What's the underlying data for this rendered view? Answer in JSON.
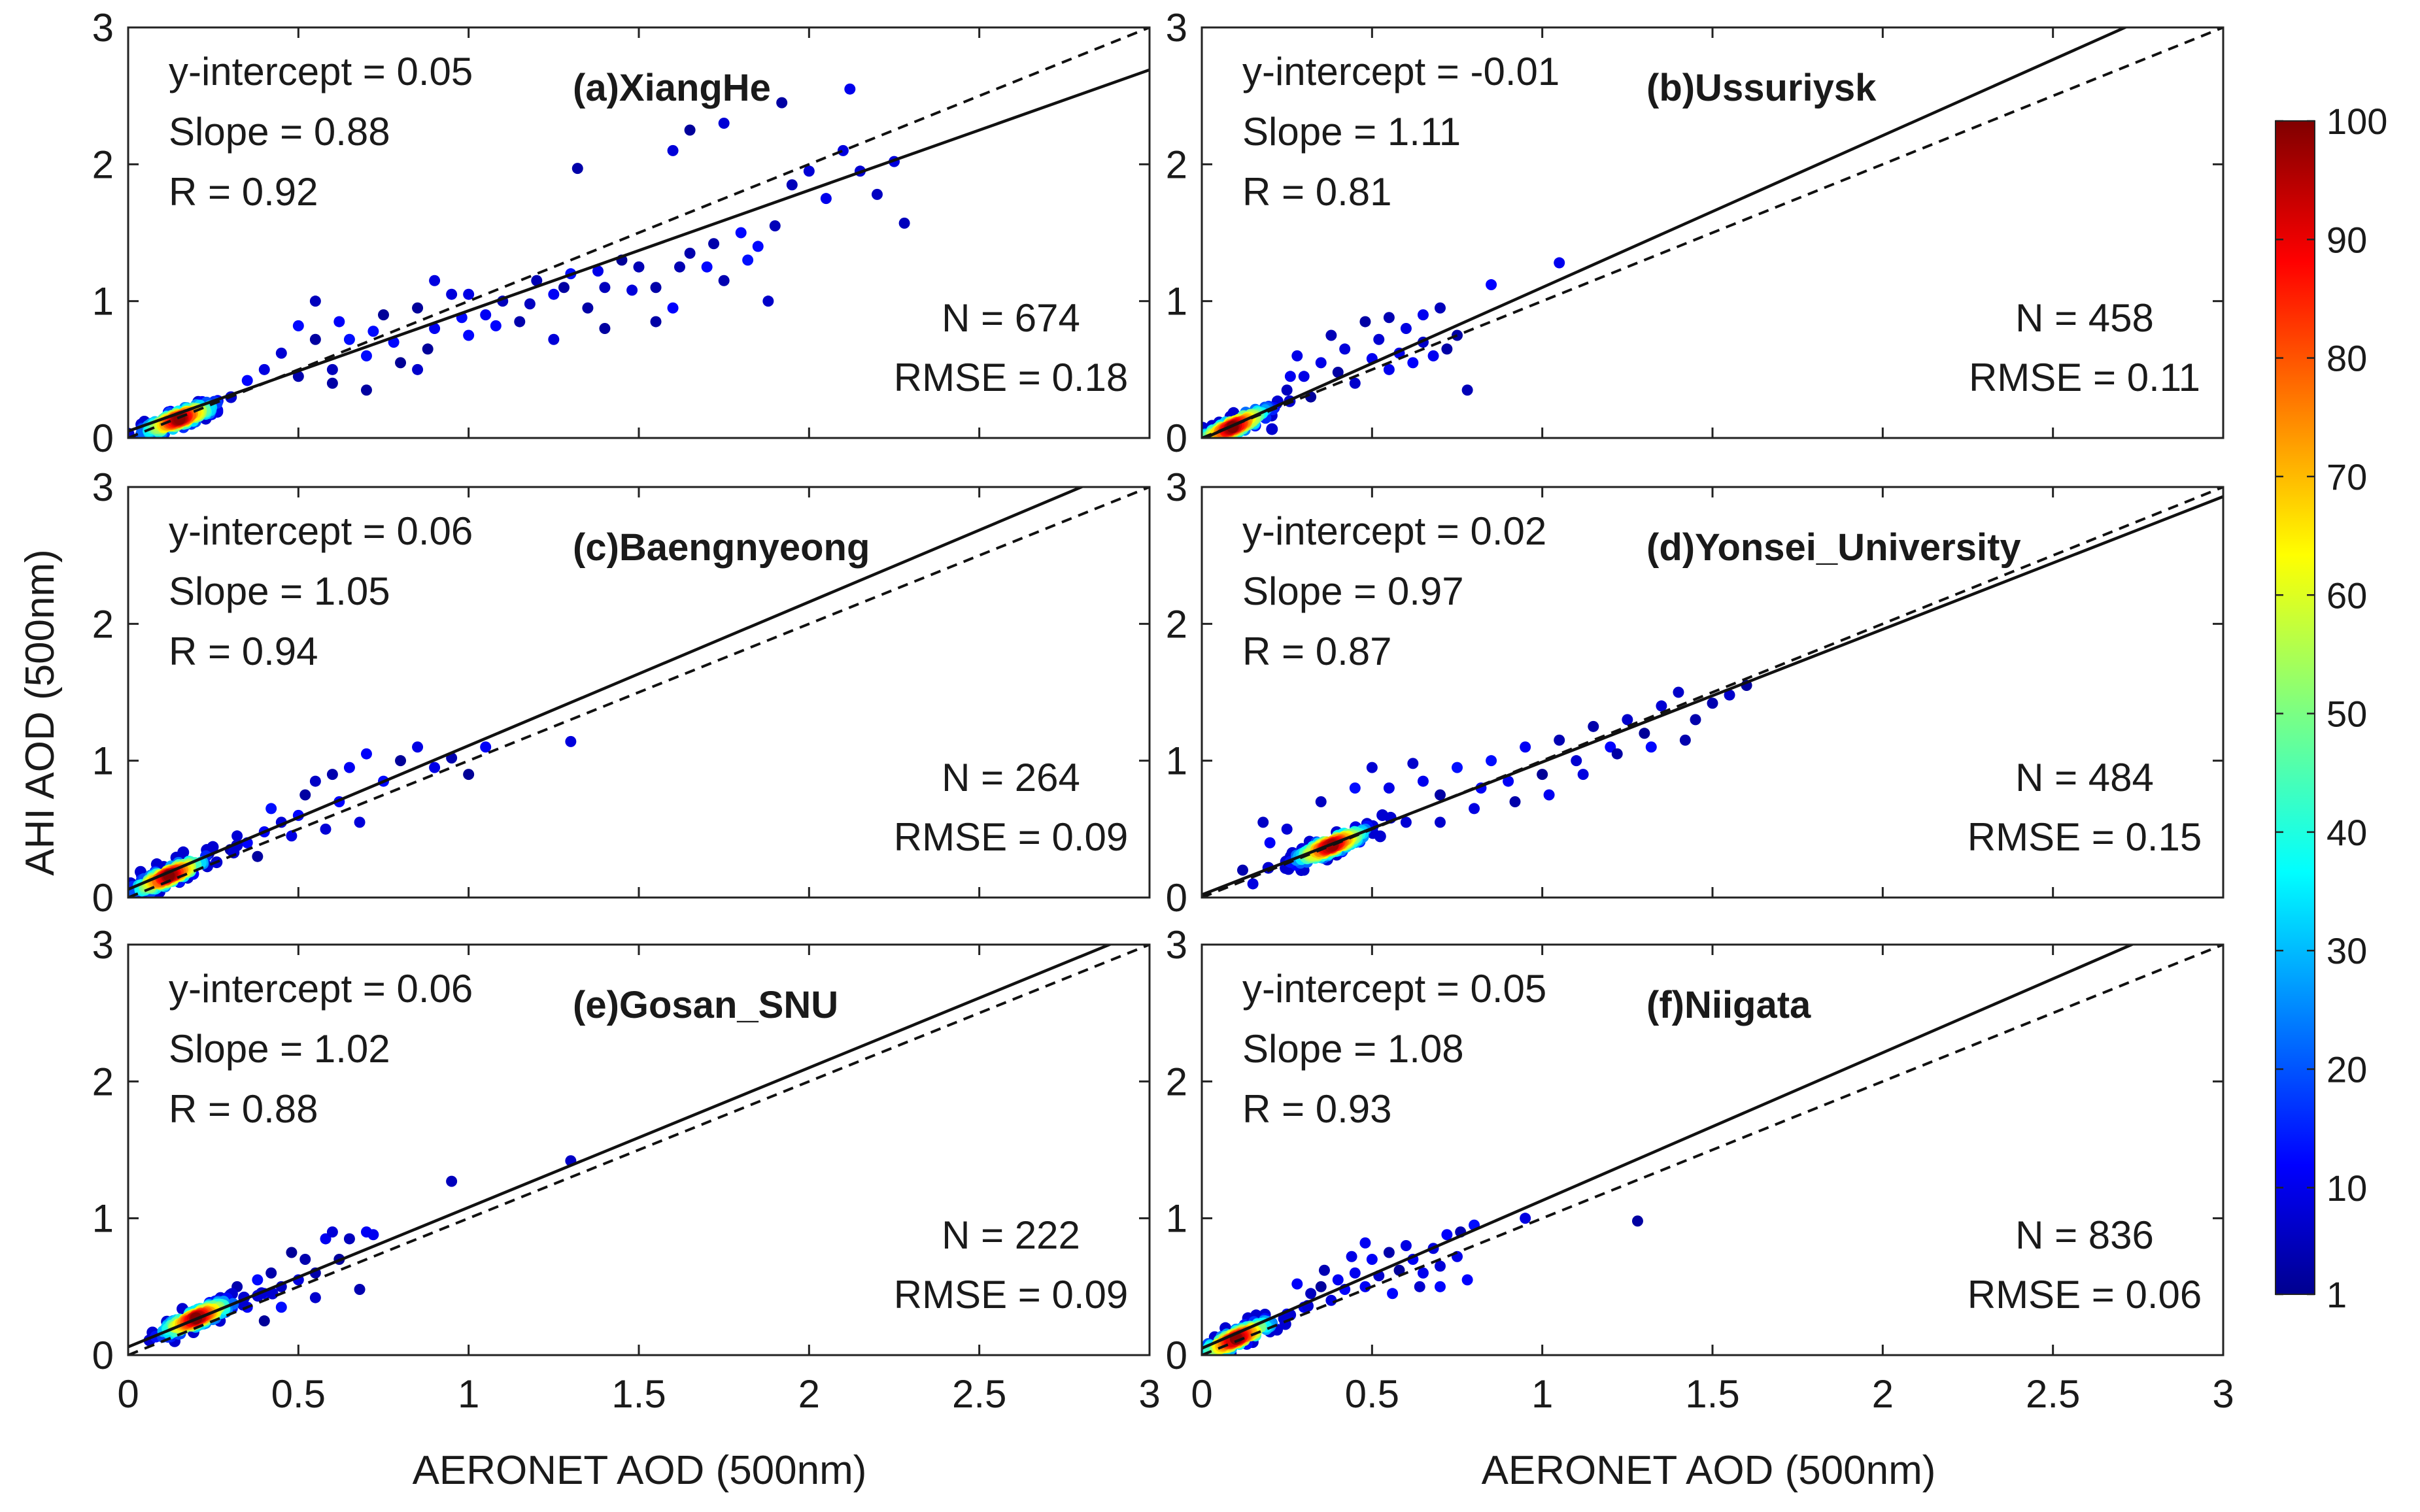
{
  "figure": {
    "ylabel": "AHI AOD (500nm)",
    "xlabel": "AERONET AOD (500nm)"
  },
  "chart_data": [
    {
      "type": "scatter",
      "title": "(a)XiangHe",
      "xlim": [
        0,
        3
      ],
      "ylim": [
        0,
        3
      ],
      "xticks": [
        "0",
        "0.5",
        "1",
        "1.5",
        "2",
        "2.5",
        "3"
      ],
      "yticks": [
        "0",
        "1",
        "2",
        "3"
      ],
      "stats": {
        "intercept": "y-intercept = 0.05",
        "slope": "Slope = 0.88",
        "r": "R = 0.92",
        "n": "N = 674",
        "rmse": "RMSE = 0.18"
      },
      "fit": {
        "intercept": 0.05,
        "slope": 0.88
      },
      "cluster": {
        "cx": 0.15,
        "cy": 0.14
      },
      "points": [
        [
          0.55,
          0.72
        ],
        [
          0.62,
          0.85
        ],
        [
          0.7,
          0.6
        ],
        [
          0.75,
          0.9
        ],
        [
          0.8,
          0.55
        ],
        [
          0.85,
          0.95
        ],
        [
          0.9,
          0.8
        ],
        [
          0.95,
          1.05
        ],
        [
          1.0,
          0.75
        ],
        [
          1.05,
          0.9
        ],
        [
          1.1,
          1.0
        ],
        [
          1.15,
          0.85
        ],
        [
          1.2,
          1.15
        ],
        [
          1.25,
          1.05
        ],
        [
          1.3,
          1.2
        ],
        [
          1.35,
          0.95
        ],
        [
          1.4,
          1.1
        ],
        [
          1.45,
          1.3
        ],
        [
          1.5,
          1.25
        ],
        [
          1.55,
          1.1
        ],
        [
          1.6,
          0.95
        ],
        [
          1.65,
          1.35
        ],
        [
          1.7,
          1.25
        ],
        [
          1.75,
          1.15
        ],
        [
          1.8,
          1.5
        ],
        [
          1.85,
          1.4
        ],
        [
          1.9,
          1.55
        ],
        [
          0.4,
          0.5
        ],
        [
          0.45,
          0.62
        ],
        [
          0.5,
          0.45
        ],
        [
          0.35,
          0.42
        ],
        [
          0.6,
          0.5
        ],
        [
          0.65,
          0.72
        ],
        [
          0.72,
          0.78
        ],
        [
          0.78,
          0.7
        ],
        [
          0.88,
          0.65
        ],
        [
          0.98,
          0.88
        ],
        [
          1.08,
          0.82
        ],
        [
          1.18,
          0.98
        ],
        [
          1.28,
          1.1
        ],
        [
          1.38,
          1.22
        ],
        [
          1.48,
          1.08
        ],
        [
          1.62,
          1.25
        ],
        [
          1.72,
          1.42
        ],
        [
          1.82,
          1.3
        ],
        [
          1.95,
          1.85
        ],
        [
          2.0,
          1.95
        ],
        [
          2.05,
          1.75
        ],
        [
          2.1,
          2.1
        ],
        [
          2.15,
          1.95
        ],
        [
          2.2,
          1.78
        ],
        [
          2.25,
          2.02
        ],
        [
          2.28,
          1.57
        ],
        [
          2.12,
          2.55
        ],
        [
          1.92,
          2.45
        ],
        [
          1.75,
          2.3
        ],
        [
          1.65,
          2.25
        ],
        [
          1.6,
          2.1
        ],
        [
          1.32,
          1.97
        ],
        [
          1.0,
          1.05
        ],
        [
          0.5,
          0.82
        ],
        [
          0.55,
          1.0
        ],
        [
          0.9,
          1.15
        ],
        [
          0.85,
          0.5
        ],
        [
          0.7,
          0.35
        ],
        [
          0.6,
          0.4
        ],
        [
          1.25,
          0.72
        ],
        [
          1.4,
          0.8
        ],
        [
          1.55,
          0.85
        ],
        [
          1.88,
          1.0
        ]
      ]
    },
    {
      "type": "scatter",
      "title": "(b)Ussuriysk",
      "xlim": [
        0,
        3
      ],
      "ylim": [
        0,
        3
      ],
      "xticks": [
        "0",
        "0.5",
        "1",
        "1.5",
        "2",
        "2.5",
        "3"
      ],
      "yticks": [
        "0",
        "1",
        "2",
        "3"
      ],
      "stats": {
        "intercept": "y-intercept = -0.01",
        "slope": "Slope = 1.11",
        "r": "R = 0.81",
        "n": "N = 458",
        "rmse": "RMSE = 0.11"
      },
      "fit": {
        "intercept": -0.01,
        "slope": 1.11
      },
      "cluster": {
        "cx": 0.09,
        "cy": 0.08
      },
      "points": [
        [
          0.3,
          0.45
        ],
        [
          0.35,
          0.55
        ],
        [
          0.4,
          0.48
        ],
        [
          0.42,
          0.65
        ],
        [
          0.45,
          0.4
        ],
        [
          0.5,
          0.58
        ],
        [
          0.52,
          0.72
        ],
        [
          0.55,
          0.5
        ],
        [
          0.58,
          0.62
        ],
        [
          0.6,
          0.8
        ],
        [
          0.62,
          0.55
        ],
        [
          0.65,
          0.7
        ],
        [
          0.68,
          0.6
        ],
        [
          0.7,
          0.95
        ],
        [
          0.72,
          0.65
        ],
        [
          0.75,
          0.75
        ],
        [
          0.78,
          0.35
        ],
        [
          0.85,
          1.12
        ],
        [
          1.05,
          1.28
        ],
        [
          0.25,
          0.35
        ],
        [
          0.28,
          0.6
        ],
        [
          0.32,
          0.3
        ],
        [
          0.38,
          0.75
        ],
        [
          0.48,
          0.85
        ],
        [
          0.55,
          0.88
        ],
        [
          0.65,
          0.9
        ],
        [
          0.22,
          0.25
        ],
        [
          0.26,
          0.45
        ]
      ]
    },
    {
      "type": "scatter",
      "title": "(c)Baengnyeong",
      "xlim": [
        0,
        3
      ],
      "ylim": [
        0,
        3
      ],
      "xticks": [
        "0",
        "0.5",
        "1",
        "1.5",
        "2",
        "2.5",
        "3"
      ],
      "yticks": [
        "0",
        "1",
        "2",
        "3"
      ],
      "stats": {
        "intercept": "y-intercept = 0.06",
        "slope": "Slope = 1.05",
        "r": "R = 0.94",
        "n": "N = 264",
        "rmse": "RMSE = 0.09"
      },
      "fit": {
        "intercept": 0.06,
        "slope": 1.05
      },
      "cluster": {
        "cx": 0.12,
        "cy": 0.16
      },
      "points": [
        [
          0.3,
          0.35
        ],
        [
          0.35,
          0.4
        ],
        [
          0.4,
          0.48
        ],
        [
          0.45,
          0.55
        ],
        [
          0.5,
          0.6
        ],
        [
          0.52,
          0.75
        ],
        [
          0.55,
          0.85
        ],
        [
          0.6,
          0.9
        ],
        [
          0.62,
          0.7
        ],
        [
          0.65,
          0.95
        ],
        [
          0.68,
          0.55
        ],
        [
          0.7,
          1.05
        ],
        [
          0.75,
          0.85
        ],
        [
          0.8,
          1.0
        ],
        [
          0.85,
          1.1
        ],
        [
          0.9,
          0.95
        ],
        [
          0.95,
          1.02
        ],
        [
          1.0,
          0.9
        ],
        [
          1.05,
          1.1
        ],
        [
          1.3,
          1.14
        ],
        [
          0.42,
          0.65
        ],
        [
          0.48,
          0.45
        ],
        [
          0.58,
          0.5
        ],
        [
          0.38,
          0.3
        ],
        [
          0.32,
          0.45
        ]
      ]
    },
    {
      "type": "scatter",
      "title": "(d)Yonsei_University",
      "xlim": [
        0,
        3
      ],
      "ylim": [
        0,
        3
      ],
      "xticks": [
        "0",
        "0.5",
        "1",
        "1.5",
        "2",
        "2.5",
        "3"
      ],
      "yticks": [
        "0",
        "1",
        "2",
        "3"
      ],
      "stats": {
        "intercept": "y-intercept = 0.02",
        "slope": "Slope = 0.97",
        "r": "R = 0.87",
        "n": "N = 484",
        "rmse": "RMSE = 0.15"
      },
      "fit": {
        "intercept": 0.02,
        "slope": 0.97
      },
      "cluster": {
        "cx": 0.38,
        "cy": 0.38
      },
      "points": [
        [
          0.15,
          0.1
        ],
        [
          0.2,
          0.4
        ],
        [
          0.25,
          0.5
        ],
        [
          0.3,
          0.2
        ],
        [
          0.55,
          0.8
        ],
        [
          0.6,
          0.55
        ],
        [
          0.65,
          0.85
        ],
        [
          0.7,
          0.75
        ],
        [
          0.75,
          0.95
        ],
        [
          0.8,
          0.65
        ],
        [
          0.85,
          1.0
        ],
        [
          0.9,
          0.85
        ],
        [
          0.95,
          1.1
        ],
        [
          1.0,
          0.9
        ],
        [
          1.05,
          1.15
        ],
        [
          1.1,
          1.0
        ],
        [
          1.15,
          1.25
        ],
        [
          1.2,
          1.1
        ],
        [
          1.25,
          1.3
        ],
        [
          1.3,
          1.2
        ],
        [
          1.35,
          1.4
        ],
        [
          1.4,
          1.5
        ],
        [
          1.45,
          1.3
        ],
        [
          1.5,
          1.42
        ],
        [
          1.55,
          1.48
        ],
        [
          1.6,
          1.55
        ],
        [
          0.7,
          0.55
        ],
        [
          0.82,
          0.8
        ],
        [
          0.92,
          0.7
        ],
        [
          1.02,
          0.75
        ],
        [
          1.12,
          0.9
        ],
        [
          1.22,
          1.05
        ],
        [
          1.32,
          1.1
        ],
        [
          1.42,
          1.15
        ],
        [
          0.5,
          0.95
        ],
        [
          0.45,
          0.8
        ],
        [
          0.35,
          0.7
        ],
        [
          0.12,
          0.2
        ],
        [
          0.18,
          0.55
        ],
        [
          0.62,
          0.98
        ]
      ]
    },
    {
      "type": "scatter",
      "title": "(e)Gosan_SNU",
      "xlim": [
        0,
        3
      ],
      "ylim": [
        0,
        3
      ],
      "xticks": [
        "0",
        "0.5",
        "1",
        "1.5",
        "2",
        "2.5",
        "3"
      ],
      "yticks": [
        "0",
        "1",
        "2",
        "3"
      ],
      "stats": {
        "intercept": "y-intercept = 0.06",
        "slope": "Slope = 1.02",
        "r": "R = 0.88",
        "n": "N = 222",
        "rmse": "RMSE = 0.09"
      },
      "fit": {
        "intercept": 0.06,
        "slope": 1.02
      },
      "cluster": {
        "cx": 0.2,
        "cy": 0.27
      },
      "points": [
        [
          0.35,
          0.35
        ],
        [
          0.4,
          0.45
        ],
        [
          0.42,
          0.6
        ],
        [
          0.45,
          0.5
        ],
        [
          0.48,
          0.75
        ],
        [
          0.5,
          0.55
        ],
        [
          0.52,
          0.7
        ],
        [
          0.55,
          0.6
        ],
        [
          0.58,
          0.85
        ],
        [
          0.6,
          0.9
        ],
        [
          0.62,
          0.7
        ],
        [
          0.65,
          0.85
        ],
        [
          0.68,
          0.48
        ],
        [
          0.7,
          0.9
        ],
        [
          0.72,
          0.88
        ],
        [
          0.45,
          0.35
        ],
        [
          0.38,
          0.55
        ],
        [
          0.32,
          0.5
        ],
        [
          0.95,
          1.27
        ],
        [
          1.3,
          1.42
        ],
        [
          0.55,
          0.42
        ],
        [
          0.4,
          0.25
        ]
      ]
    },
    {
      "type": "scatter",
      "title": "(f)Niigata",
      "xlim": [
        0,
        3
      ],
      "ylim": [
        0,
        3
      ],
      "xticks": [
        "0",
        "0.5",
        "1",
        "1.5",
        "2",
        "2.5",
        "3"
      ],
      "yticks": [
        "0",
        "1",
        "2",
        "3"
      ],
      "stats": {
        "intercept": "y-intercept = 0.05",
        "slope": "Slope = 1.08",
        "r": "R = 0.93",
        "n": "N = 836",
        "rmse": "RMSE = 0.06"
      },
      "fit": {
        "intercept": 0.05,
        "slope": 1.08
      },
      "cluster": {
        "cx": 0.1,
        "cy": 0.12
      },
      "points": [
        [
          0.3,
          0.35
        ],
        [
          0.32,
          0.45
        ],
        [
          0.35,
          0.5
        ],
        [
          0.38,
          0.4
        ],
        [
          0.4,
          0.55
        ],
        [
          0.42,
          0.48
        ],
        [
          0.45,
          0.6
        ],
        [
          0.48,
          0.5
        ],
        [
          0.5,
          0.7
        ],
        [
          0.52,
          0.58
        ],
        [
          0.55,
          0.75
        ],
        [
          0.58,
          0.62
        ],
        [
          0.6,
          0.8
        ],
        [
          0.62,
          0.7
        ],
        [
          0.65,
          0.6
        ],
        [
          0.68,
          0.78
        ],
        [
          0.7,
          0.65
        ],
        [
          0.72,
          0.88
        ],
        [
          0.75,
          0.72
        ],
        [
          0.78,
          0.55
        ],
        [
          0.8,
          0.95
        ],
        [
          0.95,
          1.0
        ],
        [
          1.28,
          0.98
        ],
        [
          0.25,
          0.3
        ],
        [
          0.28,
          0.52
        ],
        [
          0.44,
          0.72
        ],
        [
          0.48,
          0.82
        ],
        [
          0.36,
          0.62
        ],
        [
          0.56,
          0.45
        ],
        [
          0.64,
          0.5
        ],
        [
          0.7,
          0.5
        ],
        [
          0.76,
          0.9
        ]
      ]
    }
  ],
  "colorbar": {
    "ticks": [
      "100",
      "90",
      "80",
      "70",
      "60",
      "50",
      "40",
      "30",
      "20",
      "10",
      "1"
    ],
    "values": [
      100,
      90,
      80,
      70,
      60,
      50,
      40,
      30,
      20,
      10,
      1
    ],
    "range": [
      1,
      100
    ]
  }
}
